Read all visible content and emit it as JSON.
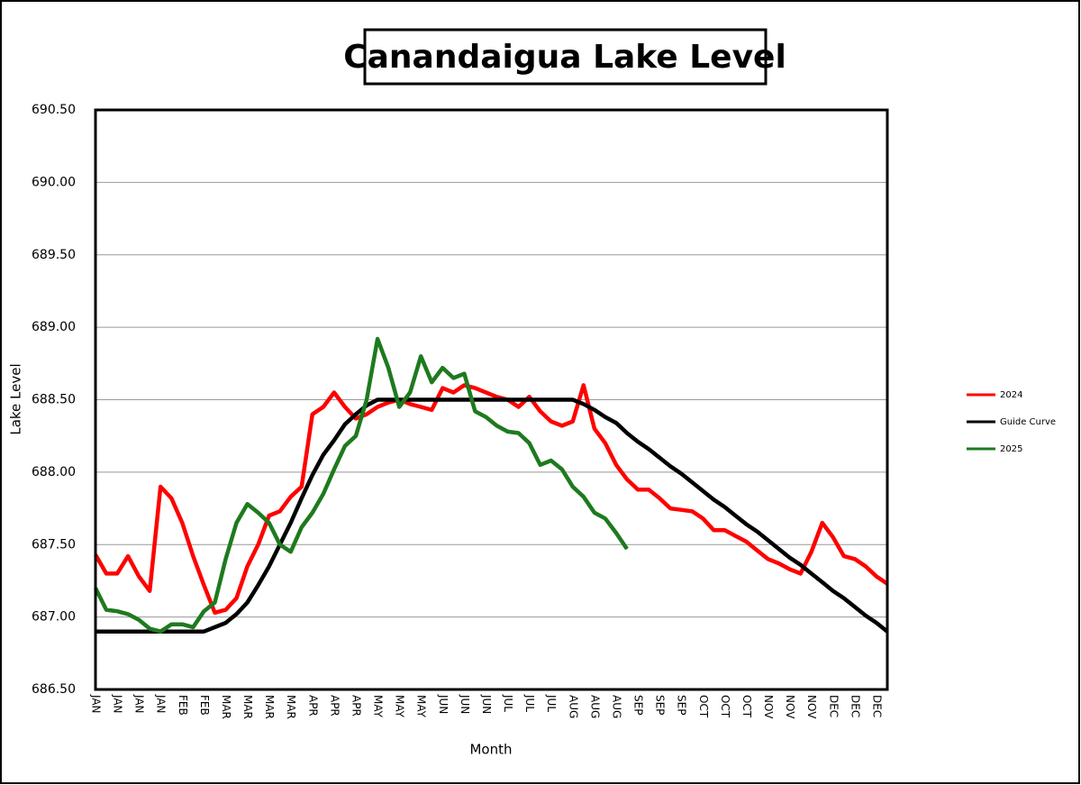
{
  "chart_data": {
    "type": "line",
    "title": "Canandaigua Lake Level",
    "x_label": "Month",
    "y_label": "Lake Level",
    "categories": [
      "JAN",
      null,
      "JAN",
      null,
      "JAN",
      null,
      "JAN",
      null,
      "FEB",
      null,
      "FEB",
      null,
      "MAR",
      null,
      "MAR",
      null,
      "MAR",
      null,
      "MAR",
      null,
      "APR",
      null,
      "APR",
      null,
      "APR",
      null,
      "MAY",
      null,
      "MAY",
      null,
      "MAY",
      null,
      "JUN",
      null,
      "JUN",
      null,
      "JUN",
      null,
      "JUL",
      null,
      "JUL",
      null,
      "JUL",
      null,
      "AUG",
      null,
      "AUG",
      null,
      "AUG",
      null,
      "SEP",
      null,
      "SEP",
      null,
      "SEP",
      null,
      "OCT",
      null,
      "OCT",
      null,
      "OCT",
      null,
      "NOV",
      null,
      "NOV",
      null,
      "NOV",
      null,
      "DEC",
      null,
      "DEC",
      null,
      "DEC",
      null
    ],
    "series": [
      {
        "name": "2024",
        "color": "#ff0000",
        "values": [
          687.43,
          687.3,
          687.3,
          687.42,
          687.28,
          687.18,
          687.9,
          687.82,
          687.65,
          687.42,
          687.22,
          687.03,
          687.05,
          687.13,
          687.35,
          687.5,
          687.7,
          687.73,
          687.83,
          687.9,
          688.4,
          688.45,
          688.55,
          688.45,
          688.37,
          688.4,
          688.45,
          688.48,
          688.5,
          688.47,
          688.45,
          688.43,
          688.58,
          688.55,
          688.6,
          688.58,
          688.55,
          688.52,
          688.5,
          688.45,
          688.52,
          688.42,
          688.35,
          688.32,
          688.35,
          688.6,
          688.3,
          688.2,
          688.05,
          687.95,
          687.88,
          687.88,
          687.82,
          687.75,
          687.74,
          687.73,
          687.68,
          687.6,
          687.6,
          687.56,
          687.52,
          687.46,
          687.4,
          687.37,
          687.33,
          687.3,
          687.45,
          687.65,
          687.55,
          687.42,
          687.4,
          687.35,
          687.28,
          687.23
        ]
      },
      {
        "name": "Guide Curve",
        "color": "#000000",
        "values": [
          686.9,
          686.9,
          686.9,
          686.9,
          686.9,
          686.9,
          686.9,
          686.9,
          686.9,
          686.9,
          686.9,
          686.93,
          686.96,
          687.02,
          687.1,
          687.22,
          687.35,
          687.5,
          687.65,
          687.82,
          687.98,
          688.12,
          688.22,
          688.33,
          688.4,
          688.46,
          688.5,
          688.5,
          688.5,
          688.5,
          688.5,
          688.5,
          688.5,
          688.5,
          688.5,
          688.5,
          688.5,
          688.5,
          688.5,
          688.5,
          688.5,
          688.5,
          688.5,
          688.5,
          688.5,
          688.47,
          688.43,
          688.38,
          688.34,
          688.27,
          688.21,
          688.16,
          688.1,
          688.04,
          687.99,
          687.93,
          687.87,
          687.81,
          687.76,
          687.7,
          687.64,
          687.59,
          687.53,
          687.47,
          687.41,
          687.36,
          687.3,
          687.24,
          687.18,
          687.13,
          687.07,
          687.01,
          686.96,
          686.9
        ]
      },
      {
        "name": "2025",
        "color": "#1e7a1e",
        "values": [
          687.2,
          687.05,
          687.04,
          687.02,
          686.98,
          686.92,
          686.9,
          686.95,
          686.95,
          686.93,
          687.04,
          687.1,
          687.4,
          687.65,
          687.78,
          687.72,
          687.65,
          687.5,
          687.45,
          687.62,
          687.72,
          687.85,
          688.02,
          688.18,
          688.25,
          688.5,
          688.92,
          688.72,
          688.45,
          688.55,
          688.8,
          688.62,
          688.72,
          688.65,
          688.68,
          688.42,
          688.38,
          688.32,
          688.28,
          688.27,
          688.2,
          688.05,
          688.08,
          688.02,
          687.9,
          687.83,
          687.72,
          687.68,
          687.58,
          687.47,
          null,
          null,
          null,
          null,
          null,
          null,
          null,
          null,
          null,
          null,
          null,
          null,
          null,
          null,
          null,
          null,
          null,
          null,
          null,
          null,
          null,
          null,
          null,
          null
        ]
      }
    ],
    "ylim": [
      686.5,
      690.5
    ],
    "yticks": [
      {
        "value": 686.5,
        "label": "686.50"
      },
      {
        "value": 687,
        "label": "687.00"
      },
      {
        "value": 687.5,
        "label": "687.50"
      },
      {
        "value": 688,
        "label": "688.00"
      },
      {
        "value": 688.5,
        "label": "688.50"
      },
      {
        "value": 689,
        "label": "689.00"
      },
      {
        "value": 689.5,
        "label": "689.50"
      },
      {
        "value": 690,
        "label": "690.00"
      },
      {
        "value": 690.5,
        "label": "690.50"
      }
    ],
    "grid": true,
    "legend": "right"
  }
}
